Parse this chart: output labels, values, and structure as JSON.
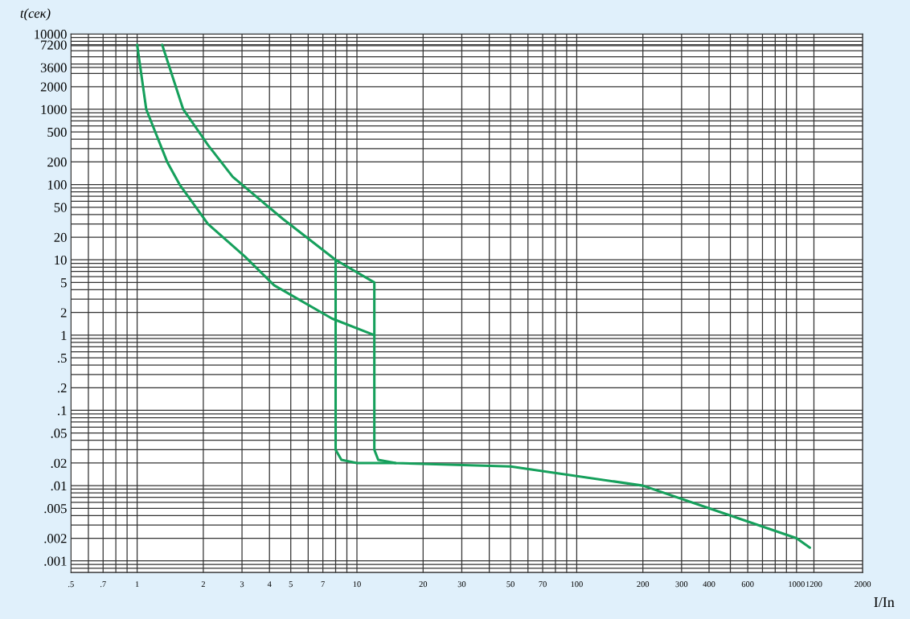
{
  "chart_data": {
    "type": "line",
    "xlabel": "I/In",
    "ylabel": "t(сек)",
    "log": "xy",
    "grid": true,
    "marker": "none",
    "line_style": "solid",
    "xlim": [
      0.5,
      2000
    ],
    "ylim": [
      0.0007,
      10000
    ],
    "xticks": [
      {
        "value": 0.5,
        "label": ".5"
      },
      {
        "value": 0.7,
        "label": ".7"
      },
      1,
      2,
      3,
      4,
      5,
      7,
      10,
      20,
      30,
      50,
      70,
      100,
      200,
      300,
      400,
      600,
      1000,
      1200,
      2000
    ],
    "yticks": [
      {
        "value": 0.001,
        "label": ".001"
      },
      {
        "value": 0.002,
        "label": ".002"
      },
      {
        "value": 0.005,
        "label": ".005"
      },
      {
        "value": 0.01,
        "label": ".01"
      },
      {
        "value": 0.02,
        "label": ".02"
      },
      {
        "value": 0.05,
        "label": ".05"
      },
      {
        "value": 0.1,
        "label": ".1"
      },
      {
        "value": 0.2,
        "label": ".2"
      },
      {
        "value": 0.5,
        "label": ".5"
      },
      1,
      2,
      5,
      10,
      20,
      50,
      100,
      200,
      500,
      1000,
      2000,
      3600,
      7200,
      10000
    ],
    "series": [
      {
        "color": "#16a05c",
        "x": [
          1.0,
          1.1,
          1.37,
          1.56,
          2.1,
          3.1,
          4.2,
          7.7,
          12,
          12,
          12.5,
          15,
          50,
          200,
          400,
          1000,
          1150
        ],
        "values": [
          7200,
          1000,
          200,
          100,
          30,
          11,
          4.6,
          1.66,
          1,
          0.03,
          0.022,
          0.02,
          0.018,
          0.01,
          0.005,
          0.002,
          0.0015
        ]
      },
      {
        "color": "#16a05c",
        "x": [
          1.3,
          1.62,
          2.1,
          2.72,
          4.6,
          8,
          12,
          12
        ],
        "values": [
          7200,
          1000,
          336,
          127,
          35,
          10,
          5,
          1
        ]
      },
      {
        "color": "#16a05c",
        "x": [
          8,
          8,
          8.5,
          10,
          15
        ],
        "values": [
          10,
          0.03,
          0.022,
          0.02,
          0.02
        ]
      }
    ]
  }
}
